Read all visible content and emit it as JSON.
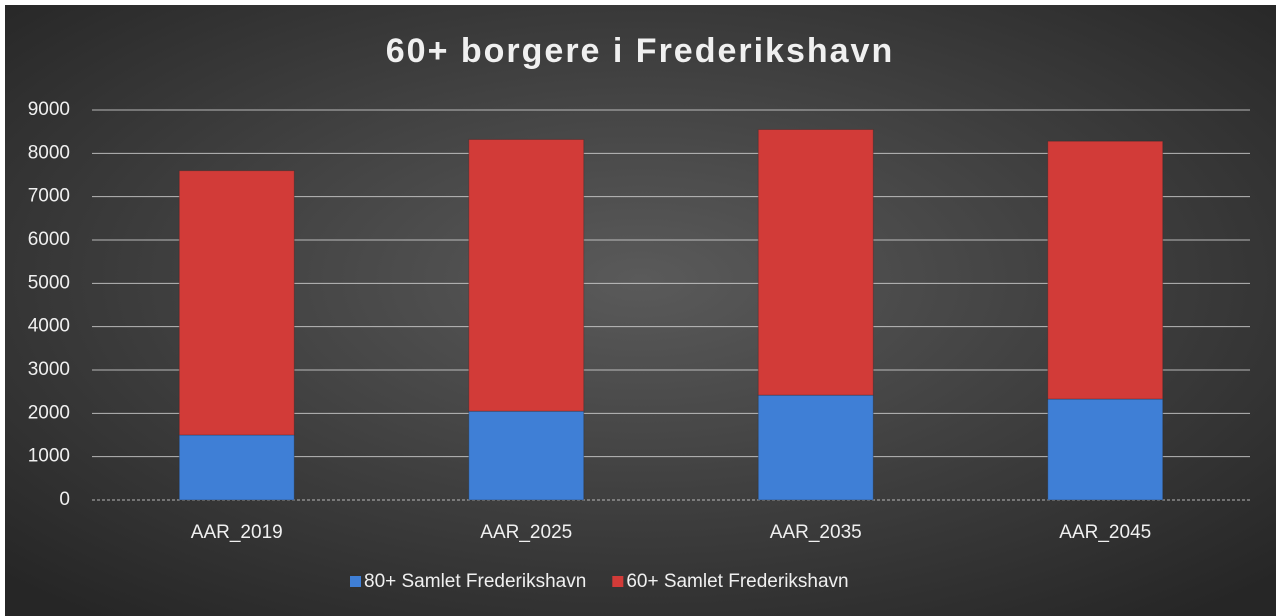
{
  "chart_data": {
    "type": "stacked_bar",
    "title": "60+ borgere i Frederikshavn",
    "categories": [
      "AAR_2019",
      "AAR_2025",
      "AAR_2035",
      "AAR_2045"
    ],
    "series": [
      {
        "name": "80+ Samlet Frederikshavn",
        "color": "#3f7fd6",
        "values": [
          1500,
          2050,
          2420,
          2330
        ]
      },
      {
        "name": "60+ Samlet Frederikshavn",
        "color": "#d23b38",
        "values": [
          6100,
          6270,
          6130,
          5950
        ]
      }
    ],
    "ylim": [
      0,
      9000
    ],
    "yticks": [
      0,
      1000,
      2000,
      3000,
      4000,
      5000,
      6000,
      7000,
      8000,
      9000
    ],
    "grid": true,
    "legend": "bottom"
  }
}
